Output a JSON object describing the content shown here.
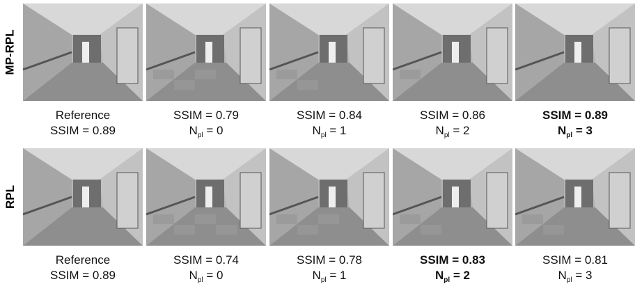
{
  "rows": [
    {
      "label": "MP-RPL",
      "cells": [
        {
          "line1": "Reference",
          "line2": "SSIM = 0.89",
          "bold": false
        },
        {
          "line1": "SSIM = 0.79",
          "line2": {
            "symbol": "N",
            "subscript": "pl",
            "rest": "= 0"
          },
          "bold": false
        },
        {
          "line1": "SSIM = 0.84",
          "line2": {
            "symbol": "N",
            "subscript": "pl",
            "rest": "= 1"
          },
          "bold": false
        },
        {
          "line1": "SSIM = 0.86",
          "line2": {
            "symbol": "N",
            "subscript": "pl",
            "rest": "= 2"
          },
          "bold": false
        },
        {
          "line1": "SSIM = 0.89",
          "line2": {
            "symbol": "N",
            "subscript": "pl",
            "rest": "= 3"
          },
          "bold": true
        }
      ]
    },
    {
      "label": "RPL",
      "cells": [
        {
          "line1": "Reference",
          "line2": "SSIM = 0.89",
          "bold": false
        },
        {
          "line1": "SSIM = 0.74",
          "line2": {
            "symbol": "N",
            "subscript": "pl",
            "rest": "= 0"
          },
          "bold": false
        },
        {
          "line1": "SSIM = 0.78",
          "line2": {
            "symbol": "N",
            "subscript": "pl",
            "rest": "= 1"
          },
          "bold": false
        },
        {
          "line1": "SSIM = 0.83",
          "line2": {
            "symbol": "N",
            "subscript": "pl",
            "rest": "= 2"
          },
          "bold": true
        },
        {
          "line1": "SSIM = 0.81",
          "line2": {
            "symbol": "N",
            "subscript": "pl",
            "rest": "= 3"
          },
          "bold": false
        }
      ]
    }
  ]
}
